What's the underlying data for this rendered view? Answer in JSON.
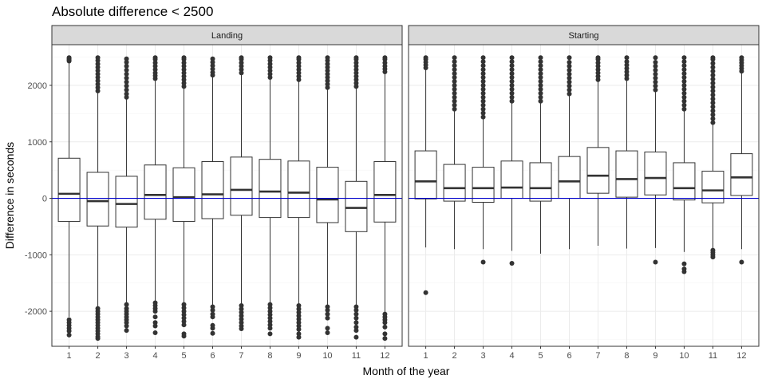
{
  "chart_data": {
    "type": "boxplot",
    "title": "Absolute difference < 2500",
    "xlabel": "Month of the year",
    "ylabel": "Difference in seconds",
    "ylim": [
      -2620,
      2720
    ],
    "yticks": [
      -2000,
      -1000,
      0,
      1000,
      2000
    ],
    "categories": [
      "1",
      "2",
      "3",
      "4",
      "5",
      "6",
      "7",
      "8",
      "9",
      "10",
      "11",
      "12"
    ],
    "reference_line": {
      "y": 0,
      "color": "#0000cc"
    },
    "grid": true,
    "colors": {
      "strip_fill": "#d9d9d9",
      "panel_border": "#333333",
      "box_stroke": "#333333",
      "grid_major": "#ebebeb",
      "grid_minor": "#f5f5f5"
    },
    "panels": [
      {
        "name": "Landing",
        "boxes": [
          {
            "month": "1",
            "whisker_low": -2100,
            "q1": -410,
            "median": 80,
            "q3": 710,
            "whisker_high": 2400,
            "outliers_low": [
              -2150,
              -2200,
              -2250,
              -2300,
              -2350,
              -2420
            ],
            "outliers_high": [
              2430,
              2450,
              2470,
              2490
            ]
          },
          {
            "month": "2",
            "whisker_low": -1960,
            "q1": -490,
            "median": -50,
            "q3": 460,
            "whisker_high": 1900,
            "outliers_low": [
              -1950,
              -2000,
              -2050,
              -2100,
              -2150,
              -2200,
              -2250,
              -2300,
              -2350,
              -2400,
              -2450,
              -2480
            ],
            "outliers_high": [
              1900,
              1960,
              2020,
              2080,
              2140,
              2200,
              2260,
              2320,
              2380,
              2440,
              2490
            ]
          },
          {
            "month": "3",
            "whisker_low": -1870,
            "q1": -510,
            "median": -100,
            "q3": 390,
            "whisker_high": 1780,
            "outliers_low": [
              -1880,
              -1950,
              -2000,
              -2050,
              -2100,
              -2150,
              -2200,
              -2260,
              -2340
            ],
            "outliers_high": [
              1790,
              1850,
              1920,
              1990,
              2060,
              2130,
              2200,
              2270,
              2340,
              2410,
              2470
            ]
          },
          {
            "month": "4",
            "whisker_low": -1830,
            "q1": -370,
            "median": 60,
            "q3": 590,
            "whisker_high": 2100,
            "outliers_low": [
              -1850,
              -1900,
              -1950,
              -2000,
              -2100,
              -2200,
              -2260,
              -2380
            ],
            "outliers_high": [
              2120,
              2170,
              2220,
              2280,
              2340,
              2400,
              2460,
              2490
            ]
          },
          {
            "month": "5",
            "whisker_low": -1850,
            "q1": -410,
            "median": 20,
            "q3": 540,
            "whisker_high": 1960,
            "outliers_low": [
              -1880,
              -1940,
              -2000,
              -2060,
              -2120,
              -2180,
              -2240,
              -2400,
              -2440
            ],
            "outliers_high": [
              1980,
              2040,
              2100,
              2160,
              2220,
              2280,
              2340,
              2400,
              2460,
              2490
            ]
          },
          {
            "month": "6",
            "whisker_low": -1900,
            "q1": -360,
            "median": 70,
            "q3": 650,
            "whisker_high": 2160,
            "outliers_low": [
              -1920,
              -1980,
              -2050,
              -2100,
              -2250,
              -2300,
              -2390
            ],
            "outliers_high": [
              2180,
              2230,
              2290,
              2350,
              2410,
              2470
            ]
          },
          {
            "month": "7",
            "whisker_low": -1870,
            "q1": -300,
            "median": 150,
            "q3": 730,
            "whisker_high": 2200,
            "outliers_low": [
              -1900,
              -1960,
              -2020,
              -2080,
              -2140,
              -2200,
              -2260,
              -2310
            ],
            "outliers_high": [
              2220,
              2280,
              2340,
              2400,
              2460,
              2490
            ]
          },
          {
            "month": "8",
            "whisker_low": -1850,
            "q1": -340,
            "median": 120,
            "q3": 690,
            "whisker_high": 2120,
            "outliers_low": [
              -1880,
              -1940,
              -2000,
              -2060,
              -2120,
              -2180,
              -2240,
              -2300,
              -2400
            ],
            "outliers_high": [
              2140,
              2200,
              2260,
              2320,
              2380,
              2440,
              2490
            ]
          },
          {
            "month": "9",
            "whisker_low": -1880,
            "q1": -340,
            "median": 100,
            "q3": 660,
            "whisker_high": 2080,
            "outliers_low": [
              -1900,
              -1960,
              -2020,
              -2080,
              -2140,
              -2200,
              -2260,
              -2320,
              -2400,
              -2460
            ],
            "outliers_high": [
              2100,
              2160,
              2220,
              2280,
              2340,
              2400,
              2460,
              2490
            ]
          },
          {
            "month": "10",
            "whisker_low": -1900,
            "q1": -430,
            "median": -20,
            "q3": 550,
            "whisker_high": 1950,
            "outliers_low": [
              -1920,
              -1980,
              -2050,
              -2120,
              -2300,
              -2380
            ],
            "outliers_high": [
              1960,
              2020,
              2080,
              2140,
              2200,
              2260,
              2320,
              2380,
              2440,
              2490
            ]
          },
          {
            "month": "11",
            "whisker_low": -1900,
            "q1": -590,
            "median": -170,
            "q3": 300,
            "whisker_high": 1960,
            "outliers_low": [
              -1920,
              -1980,
              -2050,
              -2120,
              -2200,
              -2280,
              -2340,
              -2460
            ],
            "outliers_high": [
              1980,
              2040,
              2100,
              2160,
              2220,
              2280,
              2340,
              2400,
              2460,
              2490
            ]
          },
          {
            "month": "12",
            "whisker_low": -2030,
            "q1": -420,
            "median": 60,
            "q3": 650,
            "whisker_high": 2220,
            "outliers_low": [
              -2050,
              -2100,
              -2150,
              -2200,
              -2280,
              -2400,
              -2480
            ],
            "outliers_high": [
              2240,
              2290,
              2340,
              2400,
              2460,
              2490
            ]
          }
        ]
      },
      {
        "name": "Starting",
        "boxes": [
          {
            "month": "1",
            "whisker_low": -870,
            "q1": -10,
            "median": 300,
            "q3": 840,
            "whisker_high": 2300,
            "outliers_low": [
              -1670
            ],
            "outliers_high": [
              2310,
              2360,
              2410,
              2460,
              2490
            ]
          },
          {
            "month": "2",
            "whisker_low": -900,
            "q1": -50,
            "median": 180,
            "q3": 600,
            "whisker_high": 1570,
            "outliers_low": [],
            "outliers_high": [
              1580,
              1650,
              1720,
              1790,
              1860,
              1930,
              2000,
              2070,
              2140,
              2210,
              2280,
              2350,
              2420,
              2490
            ]
          },
          {
            "month": "3",
            "whisker_low": -900,
            "q1": -70,
            "median": 180,
            "q3": 550,
            "whisker_high": 1420,
            "outliers_low": [
              -1130
            ],
            "outliers_high": [
              1440,
              1510,
              1580,
              1650,
              1720,
              1790,
              1860,
              1930,
              2000,
              2070,
              2140,
              2210,
              2280,
              2350,
              2420,
              2490
            ]
          },
          {
            "month": "4",
            "whisker_low": -930,
            "q1": 0,
            "median": 190,
            "q3": 660,
            "whisker_high": 1710,
            "outliers_low": [
              -1150
            ],
            "outliers_high": [
              1720,
              1790,
              1860,
              1930,
              2000,
              2070,
              2140,
              2210,
              2280,
              2350,
              2420,
              2490
            ]
          },
          {
            "month": "5",
            "whisker_low": -980,
            "q1": -50,
            "median": 180,
            "q3": 630,
            "whisker_high": 1710,
            "outliers_low": [],
            "outliers_high": [
              1720,
              1790,
              1860,
              1930,
              2000,
              2070,
              2140,
              2210,
              2280,
              2350,
              2420,
              2490
            ]
          },
          {
            "month": "6",
            "whisker_low": -900,
            "q1": 0,
            "median": 300,
            "q3": 740,
            "whisker_high": 1840,
            "outliers_low": [],
            "outliers_high": [
              1850,
              1920,
              1990,
              2060,
              2130,
              2200,
              2270,
              2340,
              2410,
              2490
            ]
          },
          {
            "month": "7",
            "whisker_low": -840,
            "q1": 90,
            "median": 400,
            "q3": 900,
            "whisker_high": 2080,
            "outliers_low": [],
            "outliers_high": [
              2100,
              2160,
              2220,
              2280,
              2340,
              2400,
              2460,
              2490
            ]
          },
          {
            "month": "8",
            "whisker_low": -890,
            "q1": 20,
            "median": 340,
            "q3": 840,
            "whisker_high": 2100,
            "outliers_low": [],
            "outliers_high": [
              2120,
              2180,
              2240,
              2300,
              2360,
              2420,
              2490
            ]
          },
          {
            "month": "9",
            "whisker_low": -880,
            "q1": 60,
            "median": 360,
            "q3": 820,
            "whisker_high": 1900,
            "outliers_low": [
              -1130
            ],
            "outliers_high": [
              1920,
              1990,
              2060,
              2130,
              2200,
              2270,
              2340,
              2410,
              2490
            ]
          },
          {
            "month": "10",
            "whisker_low": -950,
            "q1": -30,
            "median": 180,
            "q3": 630,
            "whisker_high": 1560,
            "outliers_low": [
              -1160,
              -1250,
              -1300
            ],
            "outliers_high": [
              1580,
              1650,
              1720,
              1790,
              1860,
              1930,
              2000,
              2070,
              2140,
              2210,
              2280,
              2350,
              2420,
              2490
            ]
          },
          {
            "month": "11",
            "whisker_low": -910,
            "q1": -80,
            "median": 140,
            "q3": 480,
            "whisker_high": 1320,
            "outliers_low": [
              -920,
              -960,
              -1000,
              -1040
            ],
            "outliers_high": [
              1340,
              1410,
              1480,
              1550,
              1620,
              1690,
              1760,
              1830,
              1900,
              1970,
              2040,
              2110,
              2180,
              2250,
              2320,
              2390,
              2460,
              2490
            ]
          },
          {
            "month": "12",
            "whisker_low": -900,
            "q1": 50,
            "median": 370,
            "q3": 790,
            "whisker_high": 2230,
            "outliers_low": [
              -1130
            ],
            "outliers_high": [
              2250,
              2300,
              2350,
              2400,
              2450,
              2490
            ]
          }
        ]
      }
    ]
  }
}
